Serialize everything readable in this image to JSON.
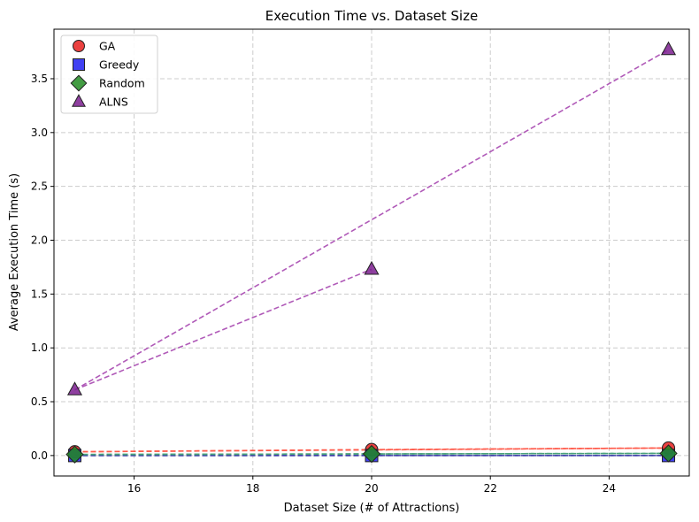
{
  "chart_data": {
    "type": "scatter",
    "title": "Execution Time vs. Dataset Size",
    "xlabel": "Dataset Size (# of Attractions)",
    "ylabel": "Average Execution Time (s)",
    "xlim": [
      14.65,
      25.35
    ],
    "ylim": [
      -0.19,
      3.96
    ],
    "xticks": [
      16,
      18,
      20,
      22,
      24
    ],
    "yticks": [
      0.0,
      0.5,
      1.0,
      1.5,
      2.0,
      2.5,
      3.0,
      3.5
    ],
    "grid": true,
    "legend_position": "top-left",
    "series": [
      {
        "name": "GA",
        "marker": "circle",
        "color": "#e8201f",
        "line_color": "#ff5a4a",
        "points": [
          [
            15,
            0.035
          ],
          [
            20,
            0.055
          ],
          [
            25,
            0.07
          ]
        ],
        "connections": [
          [
            0,
            1
          ],
          [
            0,
            2
          ],
          [
            1,
            2
          ]
        ]
      },
      {
        "name": "Greedy",
        "marker": "square",
        "color": "#2020f0",
        "line_color": "#3a3aa8",
        "points": [
          [
            15,
            0.0
          ],
          [
            20,
            0.0
          ],
          [
            25,
            0.0
          ]
        ],
        "connections": [
          [
            0,
            1
          ],
          [
            0,
            2
          ],
          [
            1,
            2
          ]
        ]
      },
      {
        "name": "Random",
        "marker": "diamond",
        "color": "#228b22",
        "line_color": "#4aa37a",
        "points": [
          [
            15,
            0.01
          ],
          [
            20,
            0.015
          ],
          [
            25,
            0.02
          ]
        ],
        "connections": [
          [
            0,
            1
          ],
          [
            0,
            2
          ],
          [
            1,
            2
          ]
        ]
      },
      {
        "name": "ALNS",
        "marker": "triangle",
        "color": "#7b1f8f",
        "line_color": "#b05ab8",
        "points": [
          [
            15,
            0.61
          ],
          [
            20,
            1.73
          ],
          [
            25,
            3.77
          ]
        ],
        "connections": [
          [
            0,
            1
          ],
          [
            0,
            2
          ]
        ]
      }
    ]
  }
}
